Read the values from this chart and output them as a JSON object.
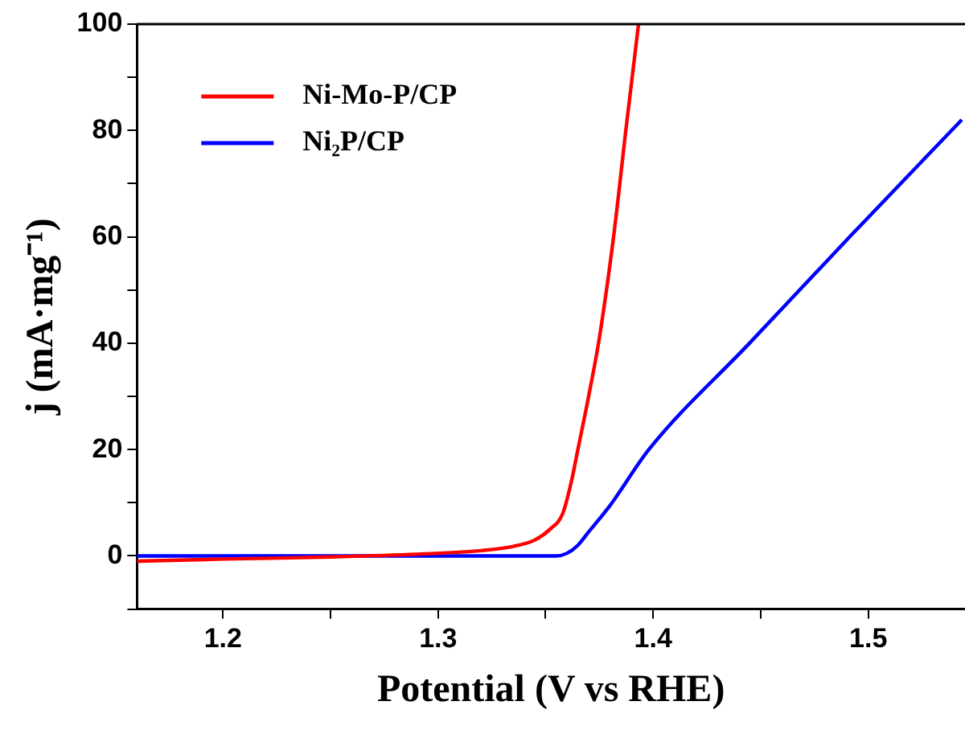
{
  "chart_data": {
    "type": "line",
    "xlabel": "Potential (V vs RHE)",
    "ylabel": "j (mA·mg⁻¹)",
    "xlim": [
      1.16,
      1.545
    ],
    "ylim": [
      -10,
      100
    ],
    "xticks": [
      1.2,
      {
        "value": 1.25,
        "label": null
      },
      1.3,
      {
        "value": 1.35,
        "label": null
      },
      1.4,
      {
        "value": 1.45,
        "label": null
      },
      1.5
    ],
    "yticks": [
      {
        "value": -10,
        "label": null
      },
      0,
      {
        "value": 10,
        "label": null
      },
      20,
      {
        "value": 30,
        "label": null
      },
      40,
      {
        "value": 50,
        "label": null
      },
      60,
      {
        "value": 70,
        "label": null
      },
      80,
      {
        "value": 90,
        "label": null
      },
      100
    ],
    "grid": false,
    "legend": "top left",
    "marker": "none",
    "line_style": "solid",
    "series": [
      {
        "name": "Ni-Mo-P/CP",
        "color": "#ff0000",
        "x": [
          1.16,
          1.2,
          1.25,
          1.3,
          1.32,
          1.335,
          1.345,
          1.352,
          1.358,
          1.362,
          1.365,
          1.37,
          1.375,
          1.3816,
          1.3873,
          1.3932
        ],
        "values": [
          -1,
          -0.6,
          -0.2,
          0.5,
          1,
          1.8,
          3,
          5,
          8,
          14,
          20,
          30,
          41,
          60,
          80,
          100
        ]
      },
      {
        "name": "Ni₂P/CP",
        "color": "#0000ff",
        "x": [
          1.16,
          1.3,
          1.355,
          1.36,
          1.365,
          1.37,
          1.38,
          1.398,
          1.4448,
          1.4914,
          1.5435
        ],
        "values": [
          0,
          0,
          0,
          0.5,
          2,
          4.5,
          9.5,
          20,
          40,
          60,
          82
        ]
      }
    ]
  }
}
